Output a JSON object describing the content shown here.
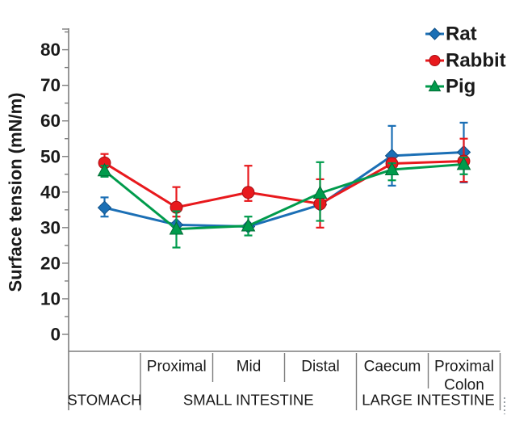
{
  "figure": {
    "background": "#ffffff"
  },
  "chart_data": {
    "type": "line",
    "title": "",
    "ylabel": "Surface tension (mN/m)",
    "xlabel": "",
    "ylim": [
      -4.8,
      85.8
    ],
    "yticks_major": [
      0,
      10,
      20,
      30,
      40,
      50,
      60,
      70,
      80
    ],
    "ytick_minor_step": 5,
    "grid": false,
    "legend": {
      "position": "top-right",
      "entries": [
        "Rat",
        "Rabbit",
        "Pig"
      ]
    },
    "x_axis": {
      "groups": [
        {
          "label": "STOMACH",
          "sublabels": [
            ""
          ]
        },
        {
          "label": "SMALL INTESTINE",
          "sublabels": [
            "Proximal",
            "Mid",
            "Distal"
          ]
        },
        {
          "label": "LARGE INTESTINE",
          "sublabels": [
            "Caecum",
            "Proximal Colon"
          ]
        }
      ]
    },
    "categories": [
      "Stomach",
      "Proximal",
      "Mid",
      "Distal",
      "Caecum",
      "Proximal Colon"
    ],
    "series": [
      {
        "name": "Rat",
        "marker": "diamond",
        "color": "#1b6fb5",
        "edge": "#0f4f86",
        "values": [
          35.6,
          30.8,
          30.3,
          36.4,
          50.2,
          51.2
        ],
        "err_up": [
          2.9,
          0,
          0,
          0,
          8.4,
          8.3
        ],
        "err_down": [
          2.5,
          0,
          0,
          0,
          8.4,
          8.5
        ]
      },
      {
        "name": "Rabbit",
        "marker": "circle",
        "color": "#e8191d",
        "edge": "#a80f14",
        "values": [
          48.2,
          35.7,
          39.9,
          36.7,
          48.0,
          48.7
        ],
        "err_up": [
          2.5,
          5.7,
          7.5,
          6.9,
          1.5,
          6.3
        ],
        "err_down": [
          3.0,
          2.6,
          2.4,
          6.7,
          2.1,
          5.8
        ]
      },
      {
        "name": "Pig",
        "marker": "triangle",
        "color": "#009b4c",
        "edge": "#006b34",
        "values": [
          46.0,
          29.6,
          30.5,
          39.7,
          46.3,
          47.8
        ],
        "err_up": [
          1.4,
          5.0,
          2.6,
          8.7,
          1.8,
          1.9
        ],
        "err_down": [
          1.7,
          5.2,
          2.7,
          7.8,
          3.0,
          2.8
        ]
      }
    ]
  }
}
